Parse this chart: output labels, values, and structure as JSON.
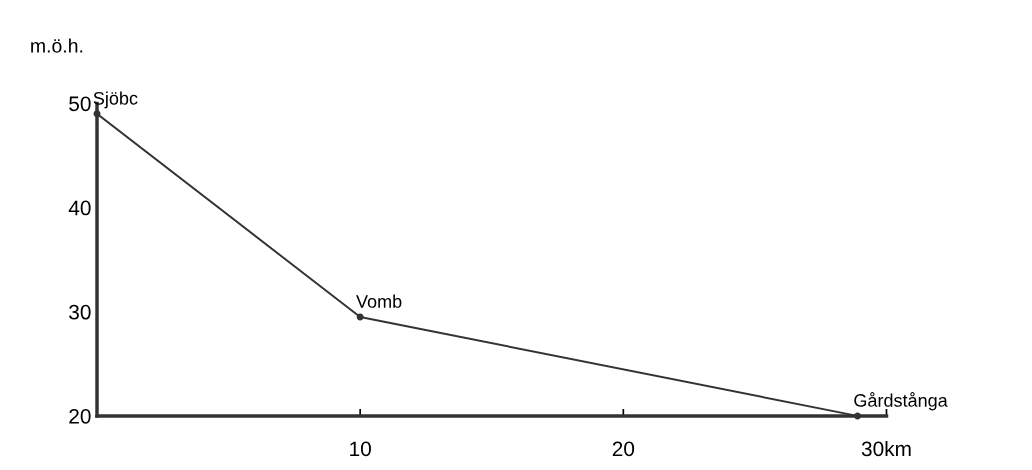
{
  "chart_data": {
    "type": "line",
    "ylabel": "m.ö.h.",
    "x": [
      0,
      10,
      28.9
    ],
    "values": [
      49,
      29.5,
      20
    ],
    "color": "#333333",
    "xlim": [
      0,
      30
    ],
    "ylim": [
      20,
      50
    ],
    "xticks": [
      {
        "value": 10,
        "label": "10"
      },
      {
        "value": 20,
        "label": "20"
      },
      {
        "value": 30,
        "label": "30km"
      }
    ],
    "yticks": [
      20,
      30,
      40,
      50
    ],
    "annotations": [
      {
        "text": "Sjöbc",
        "x": 0,
        "y": 49
      },
      {
        "text": "Vomb",
        "x": 10,
        "y": 29.5
      },
      {
        "text": "Gårdstånga",
        "x": 28.9,
        "y": 20
      }
    ],
    "marker": "circle",
    "line_style": "solid",
    "grid": false,
    "legend": false
  }
}
